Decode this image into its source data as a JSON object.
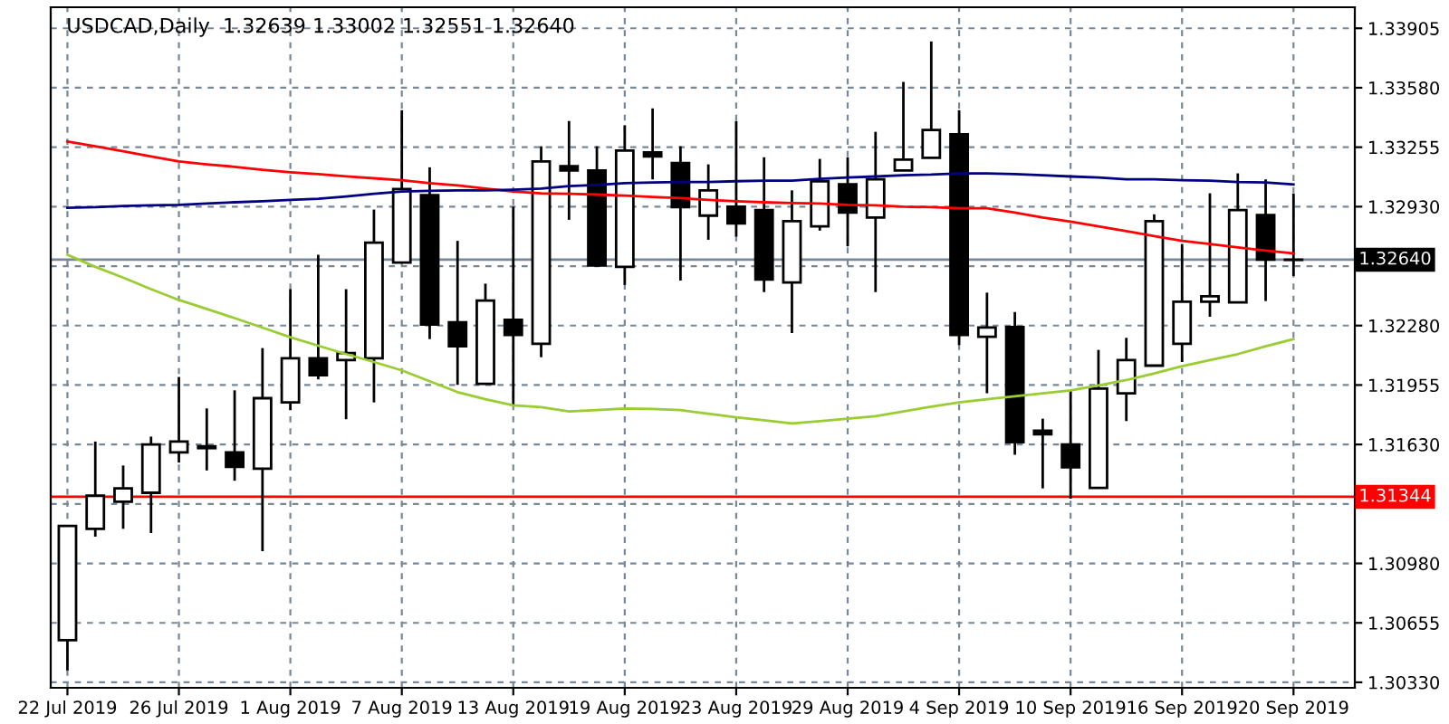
{
  "chart_data": {
    "type": "candlestick",
    "title": "USDCAD,Daily  1.32639 1.33002 1.32551 1.32640",
    "categories": [
      "22 Jul 2019",
      null,
      null,
      null,
      "26 Jul 2019",
      null,
      null,
      null,
      "1 Aug 2019",
      null,
      null,
      null,
      "7 Aug 2019",
      null,
      null,
      null,
      "13 Aug 2019",
      null,
      null,
      null,
      "19 Aug 2019",
      null,
      null,
      null,
      "23 Aug 2019",
      null,
      null,
      null,
      "29 Aug 2019",
      null,
      null,
      null,
      "4 Sep 2019",
      null,
      null,
      null,
      "10 Sep 2019",
      null,
      null,
      null,
      "16 Sep 2019",
      null,
      null,
      null,
      "20 Sep 2019"
    ],
    "ohlc": [
      [
        1.3056,
        1.31185,
        1.30395,
        1.31185
      ],
      [
        1.31169,
        1.31646,
        1.31126,
        1.3135
      ],
      [
        1.31317,
        1.31515,
        1.31169,
        1.3139
      ],
      [
        1.31366,
        1.31673,
        1.31146,
        1.3163
      ],
      [
        1.31587,
        1.31999,
        1.31531,
        1.31646
      ],
      [
        1.3162,
        1.31827,
        1.31488,
        1.3161
      ],
      [
        1.31587,
        1.31926,
        1.31432,
        1.31508
      ],
      [
        1.31498,
        1.32157,
        1.31047,
        1.31883
      ],
      [
        1.3186,
        1.32479,
        1.31818,
        1.32101
      ],
      [
        1.32101,
        1.32667,
        1.31986,
        1.32009
      ],
      [
        1.32091,
        1.32479,
        1.31768,
        1.3213
      ],
      [
        1.32101,
        1.32914,
        1.3186,
        1.32733
      ],
      [
        1.32624,
        1.33457,
        1.32624,
        1.33026
      ],
      [
        1.32993,
        1.33145,
        1.32206,
        1.32285
      ],
      [
        1.32298,
        1.32743,
        1.31956,
        1.32167
      ],
      [
        1.31962,
        1.32509,
        1.31962,
        1.32417
      ],
      [
        1.32311,
        1.3293,
        1.31844,
        1.32229
      ],
      [
        1.3218,
        1.3326,
        1.32107,
        1.33177
      ],
      [
        1.33151,
        1.33398,
        1.32858,
        1.33128
      ],
      [
        1.33128,
        1.3326,
        1.32601,
        1.32608
      ],
      [
        1.32601,
        1.33375,
        1.32502,
        1.33237
      ],
      [
        1.33227,
        1.33467,
        1.33079,
        1.33204
      ],
      [
        1.33168,
        1.3326,
        1.32526,
        1.32927
      ],
      [
        1.32881,
        1.33161,
        1.32749,
        1.33019
      ],
      [
        1.3293,
        1.33398,
        1.32766,
        1.32838
      ],
      [
        1.32911,
        1.332,
        1.32463,
        1.32532
      ],
      [
        1.32516,
        1.33019,
        1.32239,
        1.32851
      ],
      [
        1.32822,
        1.33191,
        1.32799,
        1.33069
      ],
      [
        1.33052,
        1.332,
        1.32713,
        1.32898
      ],
      [
        1.32871,
        1.33339,
        1.32463,
        1.33079
      ],
      [
        1.33128,
        1.33612,
        1.33128,
        1.33187
      ],
      [
        1.33197,
        1.33833,
        1.33197,
        1.33349
      ],
      [
        1.33326,
        1.33457,
        1.32173,
        1.32229
      ],
      [
        1.32219,
        1.3246,
        1.3191,
        1.32269
      ],
      [
        1.32272,
        1.32354,
        1.31574,
        1.31643
      ],
      [
        1.31706,
        1.31771,
        1.3139,
        1.31686
      ],
      [
        1.3163,
        1.31926,
        1.31334,
        1.31505
      ],
      [
        1.31393,
        1.32147,
        1.31393,
        1.31936
      ],
      [
        1.3191,
        1.32213,
        1.31758,
        1.32091
      ],
      [
        1.32061,
        1.32888,
        1.32061,
        1.32851
      ],
      [
        1.3218,
        1.32726,
        1.32081,
        1.3241
      ],
      [
        1.3241,
        1.33003,
        1.32328,
        1.3244
      ],
      [
        1.32407,
        1.33112,
        1.32407,
        1.32911
      ],
      [
        1.32884,
        1.33079,
        1.32414,
        1.32641
      ],
      [
        1.32639,
        1.33002,
        1.32551,
        1.3264
      ]
    ],
    "series": [
      {
        "type": "line",
        "color": "#ff0000",
        "values": [
          1.33286,
          1.3326,
          1.33233,
          1.33204,
          1.33177,
          1.33161,
          1.33148,
          1.33131,
          1.33118,
          1.33108,
          1.33095,
          1.33085,
          1.33075,
          1.33059,
          1.33046,
          1.33029,
          1.33013,
          1.33003,
          1.33,
          1.32996,
          1.3299,
          1.32983,
          1.32977,
          1.32967,
          1.3296,
          1.32954,
          1.3295,
          1.32947,
          1.3294,
          1.32937,
          1.3293,
          1.32927,
          1.32921,
          1.32921,
          1.32898,
          1.32871,
          1.32848,
          1.32822,
          1.32796,
          1.32769,
          1.32743,
          1.32726,
          1.32707,
          1.3269,
          1.32674
        ]
      },
      {
        "type": "line",
        "color": "#000080",
        "values": [
          1.32924,
          1.32927,
          1.32934,
          1.32937,
          1.3294,
          1.32947,
          1.32954,
          1.3296,
          1.32967,
          1.32973,
          1.32986,
          1.33,
          1.33013,
          1.33016,
          1.33019,
          1.33019,
          1.33023,
          1.33029,
          1.33042,
          1.33049,
          1.33059,
          1.33062,
          1.33065,
          1.33065,
          1.33069,
          1.33072,
          1.33072,
          1.33082,
          1.33089,
          1.33095,
          1.33102,
          1.33105,
          1.33112,
          1.33112,
          1.33108,
          1.33102,
          1.33095,
          1.33089,
          1.33079,
          1.33079,
          1.33075,
          1.33072,
          1.33065,
          1.33062,
          1.33052
        ]
      },
      {
        "type": "line",
        "color": "#9acd32",
        "values": [
          1.32667,
          1.32601,
          1.32542,
          1.32479,
          1.3242,
          1.32371,
          1.32321,
          1.32269,
          1.32216,
          1.3217,
          1.32124,
          1.32081,
          1.32035,
          1.31976,
          1.31916,
          1.31877,
          1.31844,
          1.31834,
          1.31811,
          1.31818,
          1.31827,
          1.31824,
          1.31818,
          1.31798,
          1.31778,
          1.31762,
          1.31745,
          1.31758,
          1.31771,
          1.31785,
          1.31811,
          1.31837,
          1.3186,
          1.31877,
          1.31893,
          1.3191,
          1.31926,
          1.31953,
          1.31982,
          1.32018,
          1.32058,
          1.32091,
          1.32124,
          1.32167,
          1.32206
        ]
      }
    ],
    "ylim": [
      1.303,
      1.3402
    ],
    "yticks": [
      {
        "value": 1.33905,
        "label": "1.33905"
      },
      {
        "value": 1.3358,
        "label": "1.33580"
      },
      {
        "value": 1.33255,
        "label": "1.33255"
      },
      {
        "value": 1.3293,
        "label": "1.32930"
      },
      {
        "value": 1.32605,
        "label": null
      },
      {
        "value": 1.3228,
        "label": "1.32280"
      },
      {
        "value": 1.31955,
        "label": "1.31955"
      },
      {
        "value": 1.3163,
        "label": "1.31630"
      },
      {
        "value": 1.31305,
        "label": null
      },
      {
        "value": 1.3098,
        "label": "1.30980"
      },
      {
        "value": 1.30655,
        "label": "1.30655"
      },
      {
        "value": 1.3033,
        "label": "1.30330"
      }
    ],
    "ref_lines": [
      {
        "axis": "y",
        "value": 1.3264,
        "label": "1.32640",
        "color": "#778899"
      },
      {
        "axis": "y",
        "value": 1.31344,
        "label": "1.31344",
        "color": "#ff0000"
      }
    ],
    "grid": true
  }
}
